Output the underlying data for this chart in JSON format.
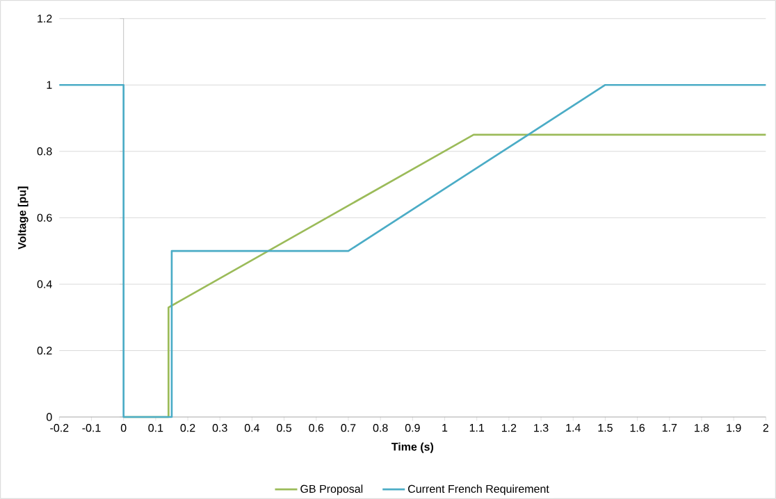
{
  "chart_data": {
    "type": "line",
    "xlabel": "Time (s)",
    "ylabel": "Voltage [pu]",
    "series": [
      {
        "name": "GB Proposal",
        "color": "#9bbb59",
        "x": [
          0,
          0.14,
          0.14,
          1.09,
          2
        ],
        "values": [
          0,
          0,
          0.33,
          0.85,
          0.85
        ]
      },
      {
        "name": "Current French Requirement",
        "color": "#4bacc6",
        "x": [
          -0.2,
          0,
          0,
          0.15,
          0.15,
          0.7,
          1.5,
          2
        ],
        "values": [
          1,
          1,
          0,
          0,
          0.5,
          0.5,
          1,
          1
        ]
      }
    ],
    "xlim": [
      -0.2,
      2
    ],
    "ylim": [
      0,
      1.2
    ],
    "xticks": [
      -0.2,
      -0.1,
      0,
      0.1,
      0.2,
      0.3,
      0.4,
      0.5,
      0.6,
      0.7,
      0.8,
      0.9,
      1,
      1.1,
      1.2,
      1.3,
      1.4,
      1.5,
      1.6,
      1.7,
      1.8,
      1.9,
      2
    ],
    "yticks": [
      0,
      0.2,
      0.4,
      0.6,
      0.8,
      1,
      1.2
    ],
    "grid": "y",
    "legend": "bottom",
    "marker": "none",
    "line_style": "solid"
  }
}
